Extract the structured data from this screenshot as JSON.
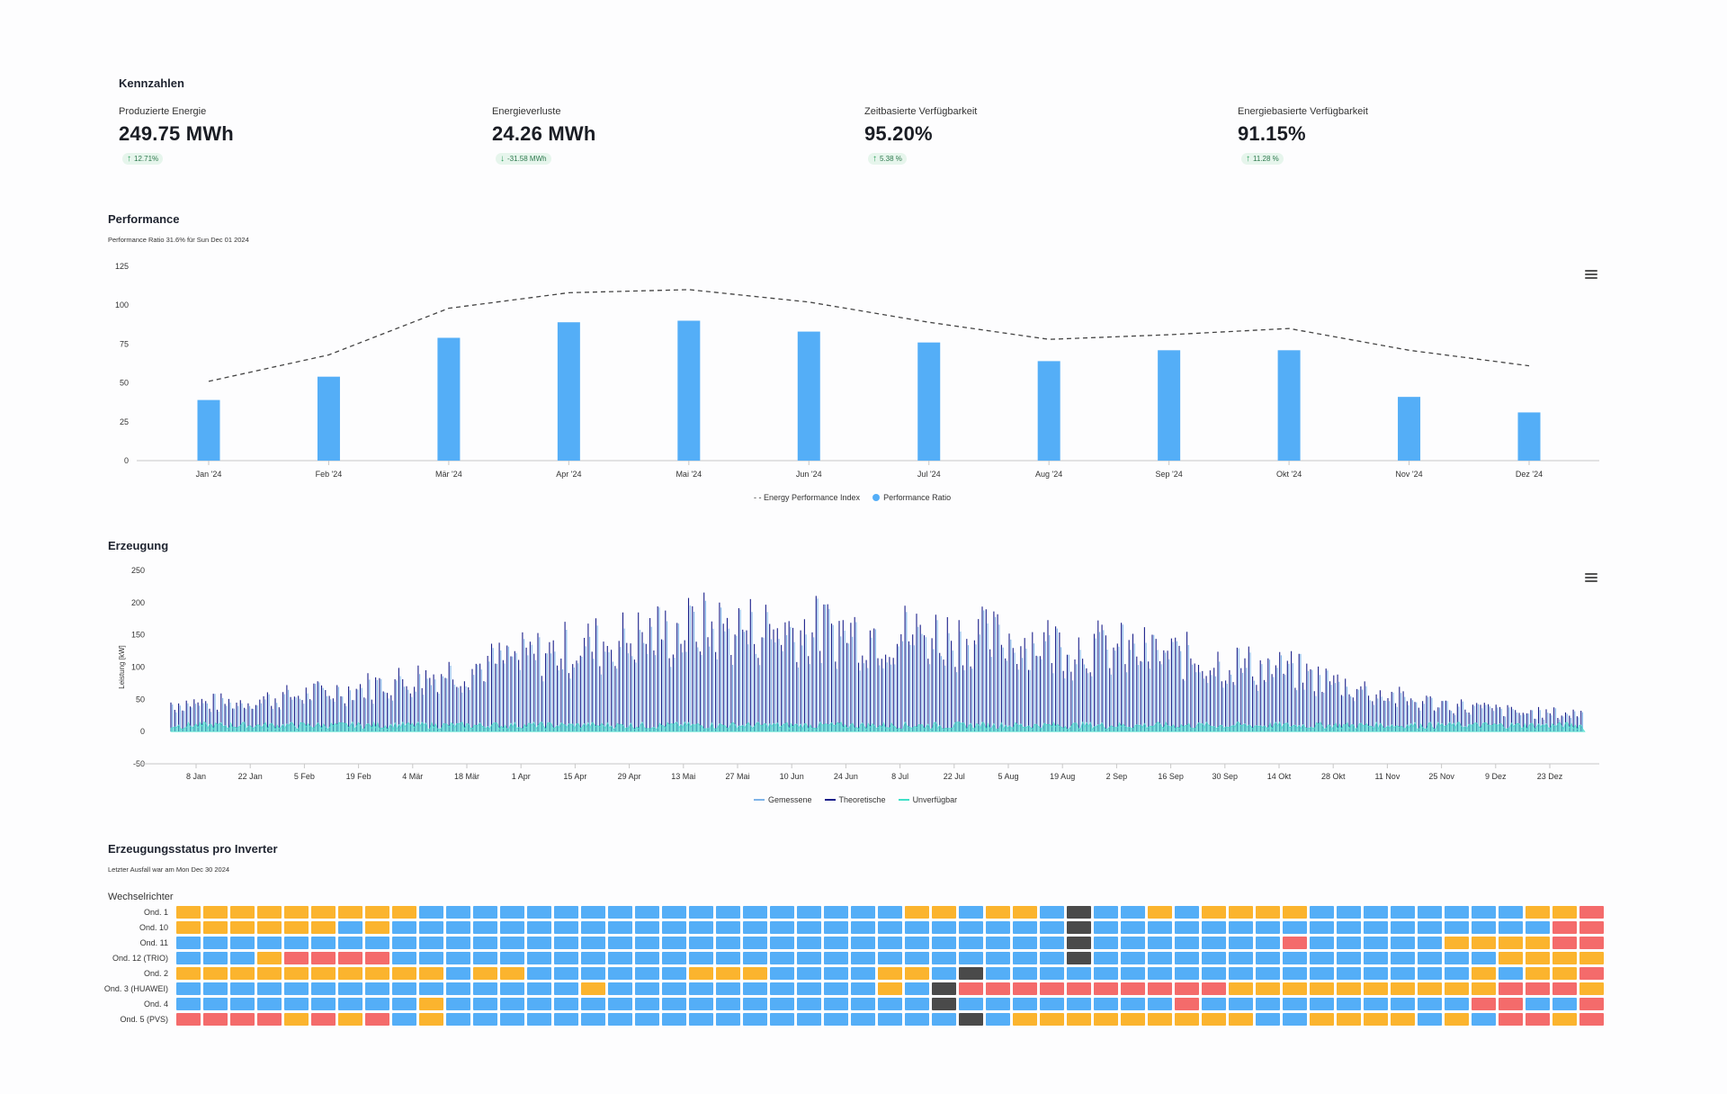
{
  "kennzahlen": {
    "title": "Kennzahlen",
    "kpis": [
      {
        "label": "Produzierte Energie",
        "value": "249.75 MWh",
        "delta": "12.71%",
        "direction": "up"
      },
      {
        "label": "Energieverluste",
        "value": "24.26 MWh",
        "delta": "-31.58 MWh",
        "direction": "down"
      },
      {
        "label": "Zeitbasierte Verfügbarkeit",
        "value": "95.20%",
        "delta": "5.38 %",
        "direction": "up"
      },
      {
        "label": "Energiebasierte Verfügbarkeit",
        "value": "91.15%",
        "delta": "11.28 %",
        "direction": "up"
      }
    ]
  },
  "performance": {
    "title": "Performance",
    "subtitle": "Performance Ratio 31.6% für Sun Dec 01 2024",
    "menu_icon": "hamburger-menu-icon"
  },
  "erzeugung": {
    "title": "Erzeugung",
    "menu_icon": "hamburger-menu-icon"
  },
  "status": {
    "title": "Erzeugungsstatus pro Inverter",
    "subtitle": "Letzter Ausfall war am Mon Dec 30 2024",
    "group_label": "Wechselrichter",
    "rows": [
      "Ond. 1",
      "Ond. 10",
      "Ond. 11",
      "Ond. 12 (TRIO)",
      "Ond. 2",
      "Ond. 3 (HUAWEI)",
      "Ond. 4",
      "Ond. 5 (PVS)"
    ],
    "colors": {
      "B": "#54aef7",
      "O": "#fbb42e",
      "R": "#f46b6b",
      "D": "#4a4a4a"
    },
    "grid": [
      "OOOOOOOOOBBBBBBBBBBBBBBBBBBOOBOOBDBBOBOOOOBBBBBBBBOORROOOOOO",
      "OOOOOOBOBBBBBBBBBBBBBBBBBBBBBBBBBDBBBBBBBBBBBBBBBBBRRBOOOOOO",
      "BBBBBBBBBBBBBBBBBBBBBBBBBBBBBBBBBDBBBBBBBRBBBBBOOOORRBBRRR",
      "BBBORRRRBBBBBBBBBBBBBBBBBBBBBBBBBDBBBBBBBBBBBBBBBOOOORRBBRRR",
      "OOOOOOOOOOBOOBBBBBBOOOBBBBOOBDBBBBBBBBBBBBBBBBBBOBOORRRORRR",
      "BBBBBBBBBBBBBBBOBBBBBBBBBBOBDRRRRRRRRRROOOOOOOOOORRROORRR",
      "BBBBBBBBBOBBBBBBBBBBBBBBBBBBDBBBBBBBBRBBBBBBBBBBRRBBRRR",
      "RRRRORORBOBBBBBBBBBBBBBBBBBBBDBOOOOOOOOOBBOOOOBOBRRORRR"
    ]
  },
  "chart_data": [
    {
      "type": "bar",
      "title": "Performance",
      "categories": [
        "Jan '24",
        "Feb '24",
        "Mär '24",
        "Apr '24",
        "Mai '24",
        "Jun '24",
        "Jul '24",
        "Aug '24",
        "Sep '24",
        "Okt '24",
        "Nov '24",
        "Dez '24"
      ],
      "series": [
        {
          "name": "Performance Ratio",
          "type": "bar",
          "color": "#54aef7",
          "values": [
            39,
            54,
            79,
            89,
            90,
            83,
            76,
            64,
            71,
            71,
            41,
            31
          ]
        },
        {
          "name": "Energy Performance Index",
          "type": "line",
          "style": "dashed",
          "color": "#444444",
          "values": [
            51,
            68,
            98,
            108,
            110,
            102,
            89,
            78,
            81,
            85,
            71,
            61
          ]
        }
      ],
      "ylim": [
        0,
        125
      ],
      "yticks": [
        0,
        25,
        50,
        75,
        100,
        125
      ],
      "grid": false,
      "legend": "bottom-center",
      "legend_labels": [
        "- - Energy Performance Index",
        "Performance Ratio"
      ]
    },
    {
      "type": "area",
      "title": "Erzeugung",
      "ylabel": "Leistung [kW]",
      "ylim": [
        -50,
        250
      ],
      "yticks": [
        -50,
        0,
        50,
        100,
        150,
        200,
        250
      ],
      "xticks": [
        "8 Jan",
        "22 Jan",
        "5 Feb",
        "19 Feb",
        "4 Mär",
        "18 Mär",
        "1 Apr",
        "15 Apr",
        "29 Apr",
        "13 Mai",
        "27 Mai",
        "10 Jun",
        "24 Jun",
        "8 Jul",
        "22 Jul",
        "5 Aug",
        "19 Aug",
        "2 Sep",
        "16 Sep",
        "30 Sep",
        "14 Okt",
        "28 Okt",
        "11 Nov",
        "25 Nov",
        "9 Dez",
        "23 Dez"
      ],
      "series": [
        {
          "name": "Gemessene",
          "color": "#7fb4e8"
        },
        {
          "name": "Theoretische",
          "color": "#1b1f8a",
          "daily_peak_monthly_avg": [
            55,
            80,
            120,
            165,
            200,
            195,
            185,
            170,
            145,
            115,
            60,
            35
          ]
        },
        {
          "name": "Unverfügbar",
          "color": "#40e0c8",
          "typical_level": 10
        }
      ],
      "legend": "bottom-center"
    }
  ]
}
